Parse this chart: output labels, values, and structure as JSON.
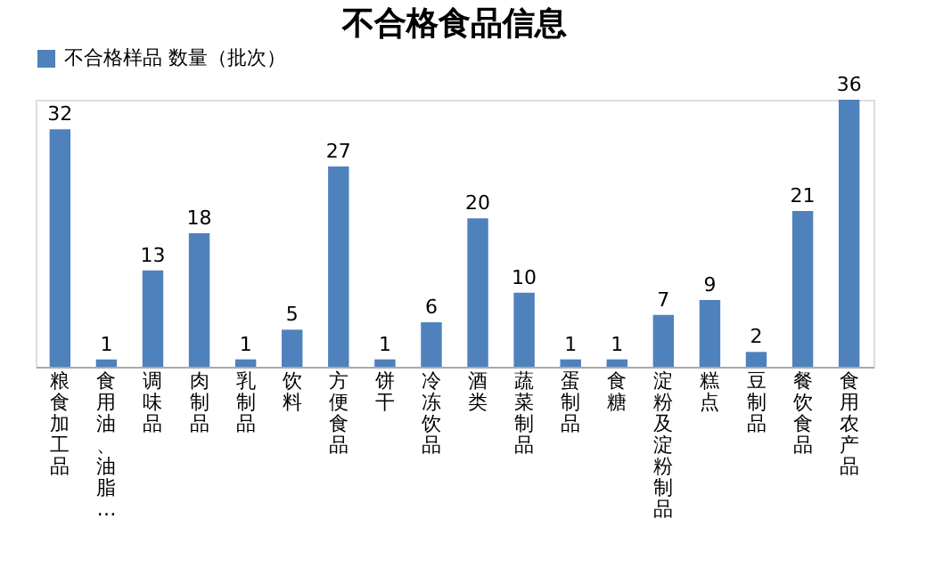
{
  "chart_data": {
    "type": "bar",
    "title": "不合格食品信息",
    "categories": [
      "粮食加工品",
      "食用油、油脂…",
      "调味品",
      "肉制品",
      "乳制品",
      "饮料",
      "方便食品",
      "饼干",
      "冷冻饮品",
      "酒类",
      "蔬菜制品",
      "蛋制品",
      "食糖",
      "淀粉及淀粉制品",
      "糕点",
      "豆制品",
      "餐饮食品",
      "食用农产品"
    ],
    "series": [
      {
        "name": "不合格样品 数量（批次）",
        "color": "#4f81bd",
        "values": [
          32,
          1,
          13,
          18,
          1,
          5,
          27,
          1,
          6,
          20,
          10,
          1,
          1,
          7,
          9,
          2,
          21,
          36
        ]
      }
    ],
    "data_labels": true,
    "legend": "top",
    "grid": false
  }
}
